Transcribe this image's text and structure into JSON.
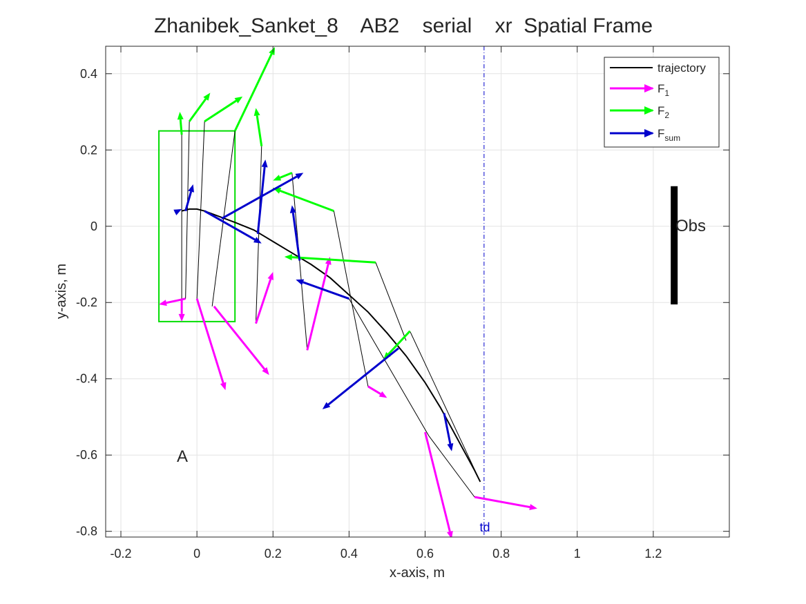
{
  "chart_data": {
    "type": "line",
    "title": "Zhanibek_Sanket_8    AB2    serial    xr  Spatial Frame",
    "xlabel": "x-axis, m",
    "ylabel": "y-axis, m",
    "xlim": [
      -0.24,
      1.4
    ],
    "ylim": [
      -0.815,
      0.472
    ],
    "xticks": [
      -0.2,
      0,
      0.2,
      0.4,
      0.6,
      0.8,
      1,
      1.2
    ],
    "yticks": [
      -0.8,
      -0.6,
      -0.4,
      -0.2,
      0,
      0.2,
      0.4
    ],
    "xtick_labels": [
      "-0.2",
      "0",
      "0.2",
      "0.4",
      "0.6",
      "0.8",
      "1",
      "1.2"
    ],
    "ytick_labels": [
      "-0.8",
      "-0.6",
      "-0.4",
      "-0.2",
      "0",
      "0.2",
      "0.4"
    ],
    "grid": true,
    "legend_position": "top-right",
    "legend": {
      "trajectory": "trajectory",
      "f1": "F",
      "f1_sub": "1",
      "f2": "F",
      "f2_sub": "2",
      "fsum": "F",
      "fsum_sub": "sum"
    },
    "colors": {
      "trajectory": "#000000",
      "F1": "#ff00ff",
      "F2": "#00ff00",
      "Fsum": "#0000cc",
      "box": "#00dd00",
      "obstacle": "#000000",
      "td_line": "#0000cc"
    },
    "trajectory": [
      [
        -0.04,
        0.04
      ],
      [
        -0.02,
        0.045
      ],
      [
        0.0,
        0.045
      ],
      [
        0.02,
        0.04
      ],
      [
        0.06,
        0.025
      ],
      [
        0.1,
        0.01
      ],
      [
        0.15,
        -0.01
      ],
      [
        0.2,
        -0.04
      ],
      [
        0.25,
        -0.07
      ],
      [
        0.3,
        -0.1
      ],
      [
        0.35,
        -0.135
      ],
      [
        0.4,
        -0.18
      ],
      [
        0.45,
        -0.225
      ],
      [
        0.5,
        -0.28
      ],
      [
        0.55,
        -0.34
      ],
      [
        0.6,
        -0.41
      ],
      [
        0.64,
        -0.475
      ],
      [
        0.67,
        -0.53
      ],
      [
        0.7,
        -0.585
      ],
      [
        0.73,
        -0.64
      ],
      [
        0.745,
        -0.67
      ]
    ],
    "frames": [
      {
        "F1_base": [
          -0.03,
          -0.19
        ],
        "F2_base": [
          -0.04,
          0.25
        ],
        "com": [
          -0.04,
          0.04
        ]
      },
      {
        "F1_base": [
          -0.0,
          -0.19
        ],
        "F2_base": [
          -0.02,
          0.275
        ],
        "com": [
          -0.01,
          0.045
        ]
      },
      {
        "F1_base": [
          0.04,
          -0.21
        ],
        "F2_base": [
          0.02,
          0.275
        ],
        "com": [
          0.02,
          0.04
        ]
      },
      {
        "F1_base": [
          0.155,
          -0.255
        ],
        "F2_base": [
          0.095,
          0.25
        ],
        "com": [
          0.065,
          0.02
        ]
      },
      {
        "F1_base": [
          0.29,
          -0.325
        ],
        "F2_base": [
          0.17,
          0.21
        ],
        "com": [
          0.17,
          -0.02
        ]
      },
      {
        "F1_base": [
          0.45,
          -0.42
        ],
        "F2_base": [
          0.36,
          0.04
        ],
        "com": [
          0.27,
          -0.09
        ]
      },
      {
        "F1_base": [
          0.73,
          -0.71
        ],
        "F2_base": [
          0.47,
          -0.095
        ],
        "com": [
          0.4,
          -0.19
        ]
      },
      {
        "F1_base": [
          0.61,
          -0.55
        ],
        "F2_base": [
          0.56,
          -0.275
        ],
        "com": [
          0.53,
          -0.32
        ]
      },
      {
        "F1_base": [
          0.73,
          -0.71
        ],
        "F2_base": [
          0.56,
          -0.275
        ],
        "com": [
          0.65,
          -0.49
        ]
      },
      {
        "F1_base": [
          0.745,
          -0.67
        ],
        "F2_base": [
          0.745,
          -0.67
        ],
        "com": [
          0.745,
          -0.67
        ]
      }
    ],
    "F1_arrows": [
      [
        [
          -0.03,
          -0.19
        ],
        [
          -0.1,
          -0.205
        ]
      ],
      [
        [
          -0.04,
          -0.19
        ],
        [
          -0.04,
          -0.25
        ]
      ],
      [
        [
          -0.0,
          -0.19
        ],
        [
          0.075,
          -0.43
        ]
      ],
      [
        [
          0.045,
          -0.21
        ],
        [
          0.19,
          -0.39
        ]
      ],
      [
        [
          0.155,
          -0.255
        ],
        [
          0.2,
          -0.12
        ]
      ],
      [
        [
          0.29,
          -0.325
        ],
        [
          0.35,
          -0.08
        ]
      ],
      [
        [
          0.45,
          -0.42
        ],
        [
          0.5,
          -0.45
        ]
      ],
      [
        [
          0.6,
          -0.54
        ],
        [
          0.67,
          -0.82
        ]
      ],
      [
        [
          0.73,
          -0.71
        ],
        [
          0.895,
          -0.74
        ]
      ]
    ],
    "F2_arrows": [
      [
        [
          -0.04,
          0.24
        ],
        [
          -0.045,
          0.3
        ]
      ],
      [
        [
          -0.02,
          0.275
        ],
        [
          0.035,
          0.35
        ]
      ],
      [
        [
          0.02,
          0.275
        ],
        [
          0.12,
          0.34
        ]
      ],
      [
        [
          0.1,
          0.25
        ],
        [
          0.205,
          0.47
        ]
      ],
      [
        [
          0.17,
          0.21
        ],
        [
          0.155,
          0.31
        ]
      ],
      [
        [
          0.25,
          0.14
        ],
        [
          0.2,
          0.12
        ]
      ],
      [
        [
          0.36,
          0.04
        ],
        [
          0.2,
          0.1
        ]
      ],
      [
        [
          0.47,
          -0.095
        ],
        [
          0.23,
          -0.08
        ]
      ],
      [
        [
          0.56,
          -0.275
        ],
        [
          0.49,
          -0.35
        ]
      ]
    ],
    "Fsum_arrows": [
      [
        [
          -0.03,
          0.04
        ],
        [
          -0.01,
          0.11
        ]
      ],
      [
        [
          -0.05,
          0.04
        ],
        [
          -0.04,
          0.045
        ]
      ],
      [
        [
          0.02,
          0.04
        ],
        [
          0.17,
          -0.045
        ]
      ],
      [
        [
          0.065,
          0.02
        ],
        [
          0.28,
          0.14
        ]
      ],
      [
        [
          0.16,
          -0.02
        ],
        [
          0.18,
          0.175
        ]
      ],
      [
        [
          0.27,
          -0.09
        ],
        [
          0.25,
          0.055
        ]
      ],
      [
        [
          0.4,
          -0.19
        ],
        [
          0.26,
          -0.14
        ]
      ],
      [
        [
          0.53,
          -0.32
        ],
        [
          0.33,
          -0.48
        ]
      ],
      [
        [
          0.65,
          -0.49
        ],
        [
          0.67,
          -0.59
        ]
      ]
    ],
    "link_lines": [
      [
        [
          -0.04,
          0.25
        ],
        [
          -0.04,
          -0.19
        ]
      ],
      [
        [
          -0.02,
          0.275
        ],
        [
          -0.03,
          -0.19
        ]
      ],
      [
        [
          0.02,
          0.275
        ],
        [
          -0.0,
          -0.19
        ]
      ],
      [
        [
          0.1,
          0.25
        ],
        [
          0.04,
          -0.21
        ]
      ],
      [
        [
          0.17,
          0.21
        ],
        [
          0.155,
          -0.255
        ]
      ],
      [
        [
          0.25,
          0.14
        ],
        [
          0.29,
          -0.325
        ]
      ],
      [
        [
          0.2,
          0.1
        ],
        [
          0.36,
          0.04
        ]
      ],
      [
        [
          0.36,
          0.04
        ],
        [
          0.45,
          -0.42
        ]
      ],
      [
        [
          0.47,
          -0.095
        ],
        [
          0.55,
          -0.3
        ]
      ],
      [
        [
          0.56,
          -0.275
        ],
        [
          0.745,
          -0.67
        ]
      ],
      [
        [
          0.4,
          -0.19
        ],
        [
          0.61,
          -0.55
        ]
      ],
      [
        [
          0.61,
          -0.55
        ],
        [
          0.73,
          -0.71
        ]
      ]
    ],
    "support_box": {
      "x": [
        -0.1,
        0.1
      ],
      "y": [
        -0.25,
        0.25
      ]
    },
    "obstacle": {
      "x": 1.255,
      "y": [
        -0.205,
        0.105
      ],
      "label": "Obs"
    },
    "td_line": {
      "x": 0.755,
      "label": "td"
    },
    "annotation_A": {
      "x": -0.05,
      "y": -0.62,
      "label": "A"
    }
  }
}
